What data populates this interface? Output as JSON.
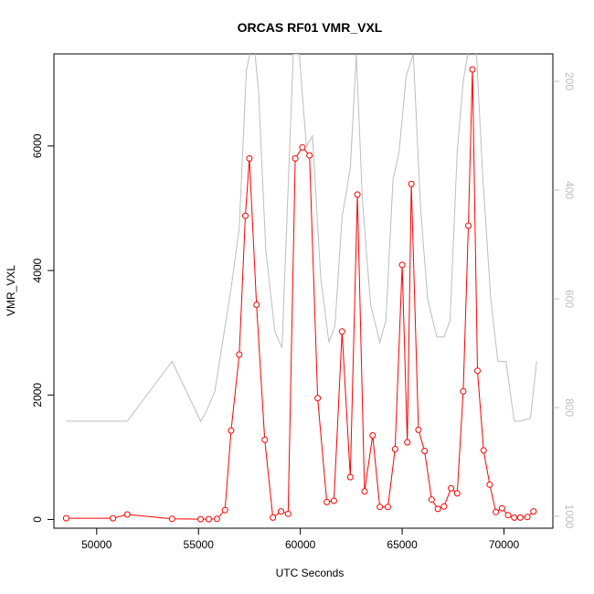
{
  "chart_data": {
    "type": "line",
    "title": "ORCAS RF01 VMR_VXL",
    "xlabel": "UTC Seconds",
    "ylabel": "VMR_VXL",
    "xlim": [
      47900,
      72400
    ],
    "ylim": [
      -140,
      7480
    ],
    "x_ticks": [
      50000,
      55000,
      60000,
      65000,
      70000
    ],
    "y_ticks": [
      0,
      2000,
      4000,
      6000
    ],
    "y2_ticks": [
      200,
      400,
      600,
      800,
      1000
    ],
    "y2_reversed": true,
    "grid": false,
    "colors": {
      "primary": "#ff0000",
      "secondary": "#bebebe",
      "axis": "#000000"
    },
    "series": [
      {
        "axis": "left",
        "style": "line+points",
        "color": "#ff0000",
        "x": [
          48500,
          50800,
          51500,
          53700,
          55100,
          55500,
          55900,
          56300,
          56600,
          57000,
          57300,
          57500,
          57850,
          58250,
          58650,
          59050,
          59400,
          59750,
          60100,
          60450,
          60850,
          61300,
          61650,
          62050,
          62450,
          62800,
          63150,
          63550,
          63900,
          64300,
          64650,
          65000,
          65250,
          65450,
          65800,
          66100,
          66450,
          66750,
          67050,
          67400,
          67700,
          68000,
          68250,
          68450,
          68700,
          69000,
          69300,
          69600,
          69900,
          70200,
          70500,
          70800,
          71150,
          71450
        ],
        "y": [
          20,
          20,
          80,
          10,
          5,
          5,
          10,
          150,
          1430,
          2650,
          4880,
          5800,
          3450,
          1280,
          30,
          130,
          90,
          5800,
          5980,
          5850,
          1950,
          280,
          300,
          3020,
          680,
          5220,
          450,
          1350,
          200,
          200,
          1130,
          4090,
          1240,
          5390,
          1440,
          1100,
          320,
          170,
          210,
          500,
          420,
          2060,
          4720,
          7230,
          2390,
          1110,
          560,
          120,
          180,
          70,
          30,
          30,
          40,
          130
        ]
      },
      {
        "axis": "right",
        "style": "line",
        "color": "#bebebe",
        "x": [
          48500,
          50800,
          51500,
          53700,
          55100,
          55350,
          55800,
          56600,
          57000,
          57350,
          57700,
          57950,
          58300,
          58750,
          59100,
          59650,
          59950,
          60300,
          60600,
          61000,
          61400,
          61700,
          62050,
          62450,
          62750,
          63050,
          63450,
          63900,
          64200,
          64550,
          64850,
          65200,
          65550,
          65900,
          66250,
          66700,
          67050,
          67350,
          67700,
          68000,
          68300,
          68650,
          68950,
          69350,
          69700,
          70100,
          70500,
          70800,
          71300,
          71600
        ],
        "y": [
          825,
          825,
          825,
          715,
          825,
          810,
          770,
          580,
          470,
          180,
          120,
          220,
          510,
          660,
          690,
          150,
          150,
          320,
          300,
          560,
          680,
          650,
          450,
          360,
          150,
          420,
          610,
          680,
          640,
          380,
          330,
          190,
          150,
          430,
          600,
          670,
          670,
          640,
          330,
          200,
          130,
          150,
          370,
          600,
          715,
          715,
          825,
          825,
          820,
          715
        ]
      }
    ]
  }
}
